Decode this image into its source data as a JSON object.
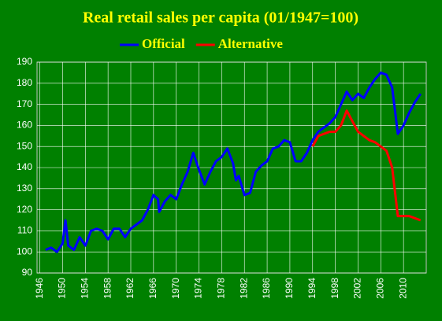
{
  "chart_data": {
    "type": "line",
    "title": "Real retail sales per capita (01/1947=100)",
    "series": [
      {
        "name": "Official",
        "color": "#0000ff",
        "x": [
          1947,
          1948,
          1949,
          1950,
          1950.5,
          1951,
          1952,
          1953,
          1954,
          1955,
          1956,
          1957,
          1958,
          1959,
          1960,
          1961,
          1962,
          1963,
          1964,
          1965,
          1966,
          1966.8,
          1967,
          1968,
          1969,
          1970,
          1971,
          1972,
          1973,
          1974,
          1975,
          1976,
          1977,
          1978,
          1979,
          1980,
          1980.5,
          1981,
          1982,
          1983,
          1984,
          1985,
          1986,
          1987,
          1988,
          1989,
          1990,
          1991,
          1992,
          1993,
          1994,
          1995,
          1996,
          1997,
          1998,
          1999,
          2000,
          2001,
          2002,
          2003,
          2004,
          2005,
          2006,
          2007,
          2008,
          2009,
          2010,
          2011,
          2012,
          2013
        ],
        "values": [
          101,
          102,
          100,
          104,
          115,
          103,
          101,
          107,
          103,
          110,
          111,
          110,
          106,
          111,
          111,
          107,
          111,
          113,
          115,
          120,
          127,
          125,
          119,
          124,
          127,
          125,
          132,
          138,
          147,
          139,
          132,
          138,
          143,
          145,
          149,
          142,
          134,
          136,
          127,
          128,
          138,
          141,
          143,
          149,
          150,
          153,
          152,
          143,
          143,
          147,
          153,
          157,
          159,
          161,
          164,
          170,
          176,
          172,
          175,
          173,
          178,
          182,
          185,
          184,
          178,
          156,
          160,
          166,
          171,
          175
        ]
      },
      {
        "name": "Alternative",
        "color": "#ff0000",
        "x": [
          1994,
          1995,
          1996,
          1997,
          1998,
          1999,
          2000,
          2001,
          2002,
          2003,
          2004,
          2005,
          2006,
          2007,
          2008,
          2009,
          2010,
          2011,
          2012,
          2013
        ],
        "values": [
          150,
          155,
          156,
          157,
          157,
          160,
          167,
          162,
          157,
          155,
          153,
          152,
          150,
          148,
          140,
          117,
          117,
          117,
          116,
          115
        ]
      }
    ],
    "xlim": [
      1945.5,
      2014
    ],
    "xticks": [
      1946,
      1950,
      1954,
      1958,
      1962,
      1966,
      1970,
      1974,
      1978,
      1982,
      1986,
      1990,
      1994,
      1998,
      2002,
      2006,
      2010
    ],
    "ylim": [
      90,
      190
    ],
    "yticks": [
      90,
      100,
      110,
      120,
      130,
      140,
      150,
      160,
      170,
      180,
      190
    ],
    "grid": true,
    "legend": "top"
  }
}
